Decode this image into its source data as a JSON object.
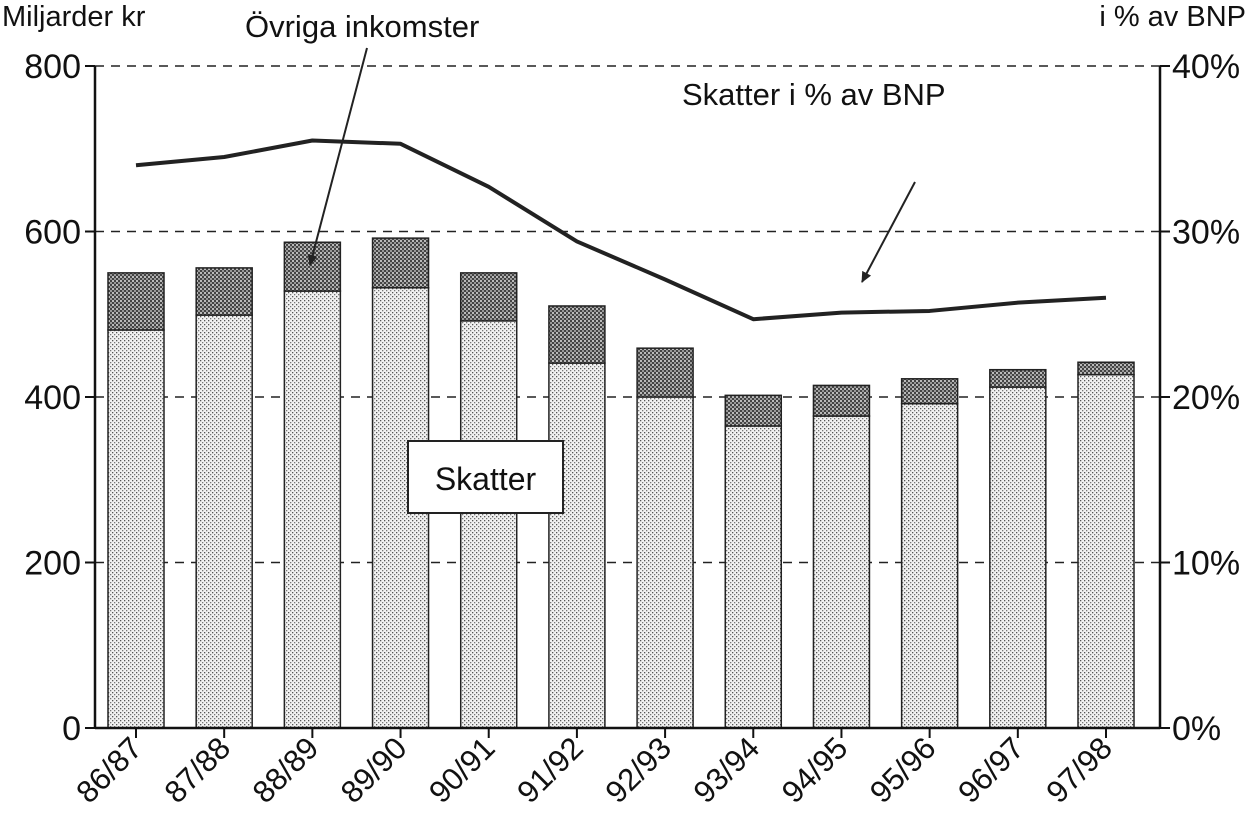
{
  "chart_data": {
    "type": "bar",
    "title": "",
    "ylabel_left": "Miljarder kr",
    "ylabel_right": "i % av BNP",
    "ylim_left": [
      0,
      800
    ],
    "ylim_right": [
      0,
      40
    ],
    "yticks_left": [
      "0",
      "200",
      "400",
      "600",
      "800"
    ],
    "yticks_right": [
      "0%",
      "10%",
      "20%",
      "30%",
      "40%"
    ],
    "grid": "dashed horizontal",
    "categories": [
      "86/87",
      "87/88",
      "88/89",
      "89/90",
      "90/91",
      "91/92",
      "92/93",
      "93/94",
      "94/95",
      "95/96",
      "96/97",
      "97/98"
    ],
    "series": [
      {
        "name": "Skatter",
        "type": "stacked-bar",
        "axis": "left",
        "values": [
          481,
          499,
          528,
          532,
          492,
          441,
          400,
          365,
          377,
          392,
          412,
          427
        ]
      },
      {
        "name": "Övriga inkomster",
        "type": "stacked-bar",
        "axis": "left",
        "values": [
          69,
          57,
          59,
          60,
          58,
          69,
          59,
          37,
          37,
          30,
          21,
          15
        ]
      },
      {
        "name": "Skatter i % av BNP",
        "type": "line",
        "axis": "right",
        "values": [
          34.0,
          34.5,
          35.5,
          35.3,
          32.7,
          29.4,
          27.1,
          24.7,
          25.1,
          25.2,
          25.7,
          26.0
        ]
      }
    ],
    "annotations": {
      "ovriga": "Övriga inkomster",
      "line": "Skatter i % av BNP",
      "skatter_box": "Skatter"
    }
  }
}
